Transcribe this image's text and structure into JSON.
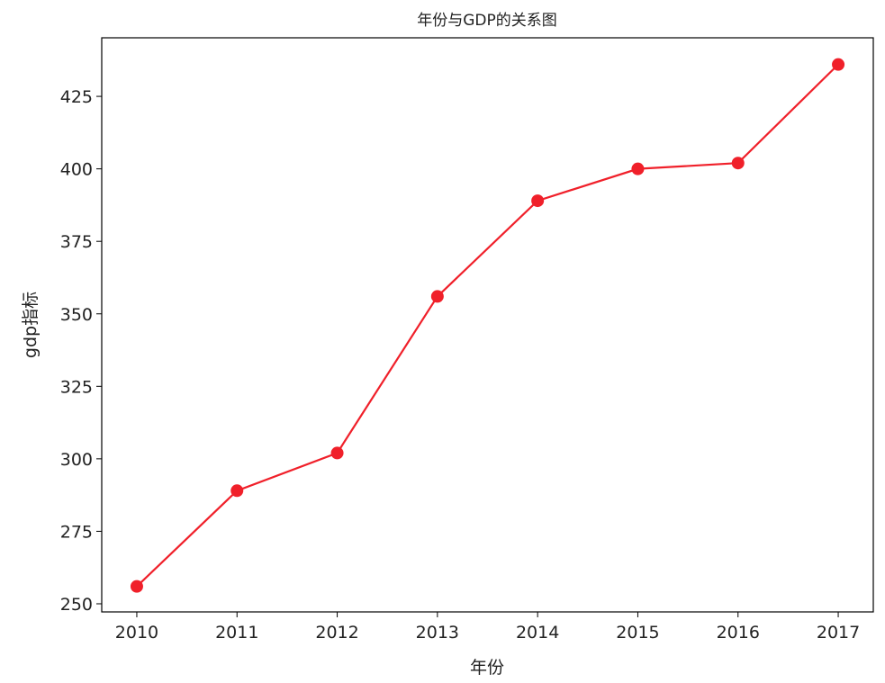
{
  "chart_data": {
    "type": "line",
    "title": "年份与GDP的关系图",
    "xlabel": "年份",
    "ylabel": "gdp指标",
    "x": [
      2010,
      2011,
      2012,
      2013,
      2014,
      2015,
      2016,
      2017
    ],
    "series": [
      {
        "values": [
          256,
          289,
          302,
          356,
          389,
          400,
          402,
          436
        ],
        "color": "#f0202a",
        "marker": "circle"
      }
    ],
    "xticks": [
      "2010",
      "2011",
      "2012",
      "2013",
      "2014",
      "2015",
      "2016",
      "2017"
    ],
    "yticks": [
      250,
      275,
      300,
      325,
      350,
      375,
      400,
      425
    ],
    "xlim": [
      2009.65,
      2017.35
    ],
    "ylim": [
      247.2,
      445.2
    ],
    "grid": false
  }
}
